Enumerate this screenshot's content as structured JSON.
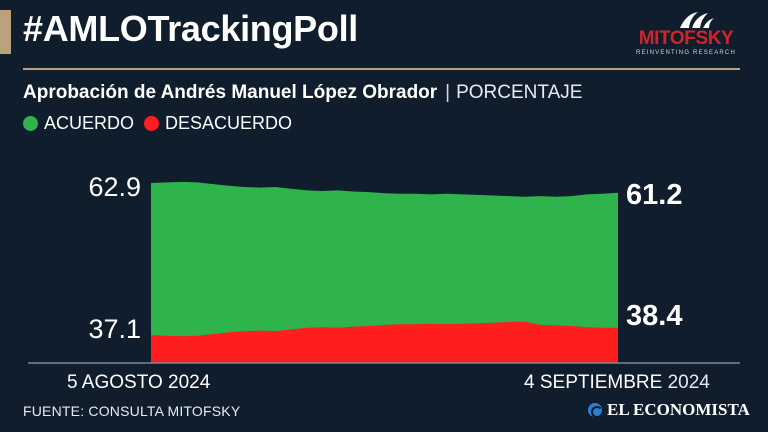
{
  "header": {
    "hashtag": "#AMLOTrackingPoll",
    "brand": {
      "name": "MITOFSKY",
      "tagline": "REINVENTING RESEARCH",
      "color": "#d2232a"
    }
  },
  "subtitle": {
    "main": "Aprobación de Andrés Manuel López Obrador",
    "separator": "|",
    "unit": "PORCENTAJE"
  },
  "legend": [
    {
      "label": "ACUERDO",
      "color": "#2fb34c"
    },
    {
      "label": "DESACUERDO",
      "color": "#ff1e1e"
    }
  ],
  "chart_data": {
    "type": "area",
    "title": "Aprobación de Andrés Manuel López Obrador",
    "unit": "PORCENTAJE",
    "x_start_label": "5 AGOSTO 2024",
    "x_end_label": {
      "date": "4 SEPTIEMBRE",
      "year": "2024"
    },
    "ylim": [
      0,
      100
    ],
    "series": [
      {
        "name": "ACUERDO",
        "color": "#2fb34c",
        "start_label": "62.9",
        "end_label": "61.2",
        "values": [
          62.9,
          63.0,
          63.1,
          63.0,
          62.7,
          62.4,
          62.2,
          62.1,
          62.2,
          61.9,
          61.6,
          61.5,
          61.6,
          61.4,
          61.3,
          61.1,
          61.0,
          61.0,
          60.9,
          61.0,
          60.9,
          60.8,
          60.7,
          60.6,
          60.5,
          60.6,
          60.5,
          60.6,
          60.9,
          61.0,
          61.2
        ]
      },
      {
        "name": "DESACUERDO",
        "color": "#ff1e1e",
        "start_label": "37.1",
        "end_label": "38.4",
        "values": [
          37.1,
          37.0,
          36.9,
          37.0,
          37.3,
          37.6,
          37.8,
          37.9,
          37.8,
          38.1,
          38.4,
          38.5,
          38.4,
          38.6,
          38.7,
          38.9,
          39.0,
          39.0,
          39.1,
          39.0,
          39.1,
          39.2,
          39.3,
          39.4,
          39.5,
          38.9,
          38.8,
          38.7,
          38.5,
          38.4,
          38.4
        ]
      }
    ]
  },
  "footer": {
    "source": "FUENTE: CONSULTA MITOFSKY",
    "publisher": "EL ECONOMISTA",
    "publisher_accent": "#2f7fd1"
  },
  "colors": {
    "background": "#0f1d2c",
    "accent": "#b9a27c"
  }
}
